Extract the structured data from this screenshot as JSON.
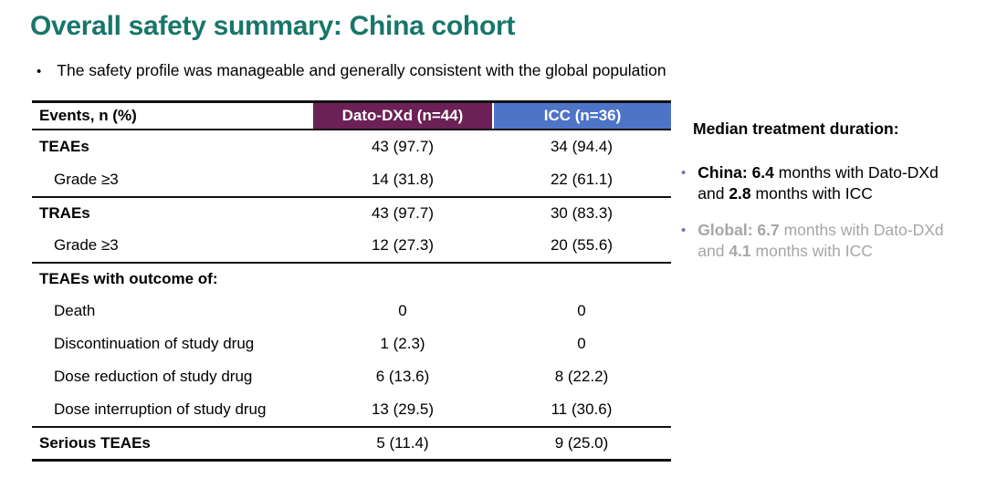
{
  "title": "Overall safety summary: China cohort",
  "subtitle": {
    "bullet": "•",
    "text": "The safety profile was manageable and generally consistent with the global population"
  },
  "colors": {
    "title_teal": "#17766A",
    "dato_header_maroon": "#6B2155",
    "icc_header_blue": "#4E74C8",
    "muted_gray": "#A6A6A6",
    "side_bullet_purple": "#7270B4"
  },
  "table": {
    "headers": {
      "events": "Events, n (%)",
      "dato": "Dato-DXd (n=44)",
      "icc": "ICC (n=36)"
    },
    "rows": [
      {
        "label": "TEAEs",
        "dato": "43 (97.7)",
        "icc": "34 (94.4)"
      },
      {
        "label": "Grade ≥3",
        "dato": "14 (31.8)",
        "icc": "22 (61.1)"
      },
      {
        "label": "TRAEs",
        "dato": "43 (97.7)",
        "icc": "30 (83.3)"
      },
      {
        "label": "Grade ≥3",
        "dato": "12 (27.3)",
        "icc": "20 (55.6)"
      },
      {
        "label": "TEAEs with outcome of:",
        "dato": "",
        "icc": ""
      },
      {
        "label": "Death",
        "dato": "0",
        "icc": "0"
      },
      {
        "label": "Discontinuation of study drug",
        "dato": "1 (2.3)",
        "icc": "0"
      },
      {
        "label": "Dose reduction of study drug",
        "dato": "6 (13.6)",
        "icc": "8 (22.2)"
      },
      {
        "label": "Dose interruption of study drug",
        "dato": "13 (29.5)",
        "icc": "11 (30.6)"
      },
      {
        "label": "Serious TEAEs",
        "dato": "5 (11.4)",
        "icc": "9 (25.0)"
      }
    ]
  },
  "side": {
    "heading": "Median treatment duration:",
    "bullet_glyph": "•",
    "china": {
      "b1": "China: 6.4",
      "t1": " months with Dato-DXd and ",
      "b2": "2.8",
      "t2": " months with ICC"
    },
    "global": {
      "b1": "Global: 6.7",
      "t1": " months with Dato-DXd and ",
      "b2": "4.1",
      "t2": " months with ICC"
    }
  }
}
